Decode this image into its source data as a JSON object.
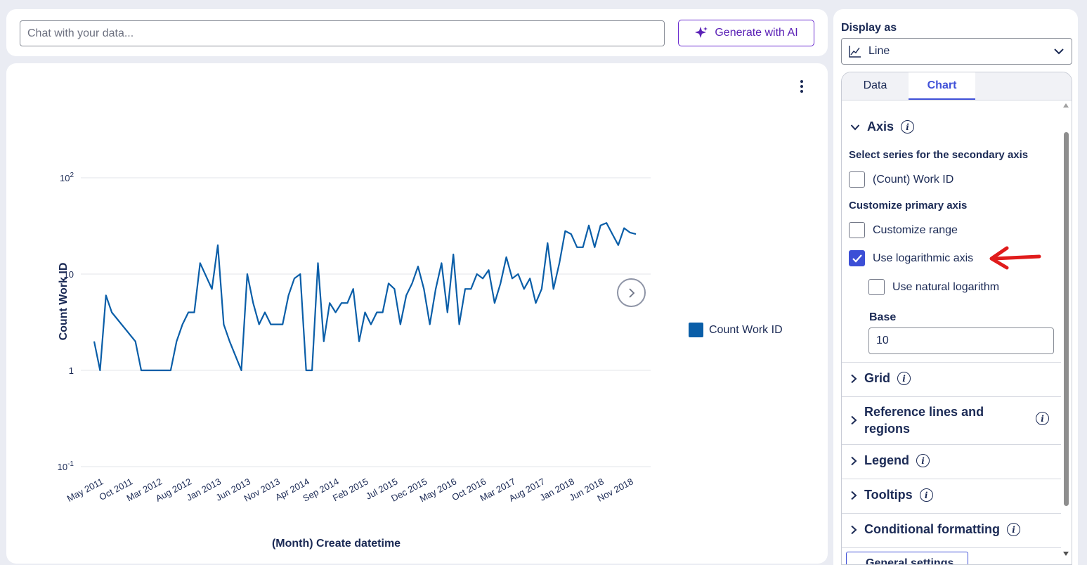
{
  "chat": {
    "placeholder": "Chat with your data..."
  },
  "generate_button": {
    "label": "Generate with AI",
    "icon": "sparkle-icon",
    "color": "#5b21b6"
  },
  "chart_data": {
    "type": "line",
    "xlabel": "(Month) Create datetime",
    "ylabel": "Count Work ID",
    "yscale": "log",
    "ylim": [
      0.1,
      100
    ],
    "ytick_labels": [
      {
        "value": 100,
        "base": "10",
        "exp": "2"
      },
      {
        "value": 10,
        "base": "10",
        "exp": ""
      },
      {
        "value": 1,
        "base": "1",
        "exp": ""
      },
      {
        "value": 0.1,
        "base": "10",
        "exp": "-1"
      }
    ],
    "xtick_labels": [
      "May 2011",
      "Oct 2011",
      "Mar 2012",
      "Aug 2012",
      "Jan 2013",
      "Jun 2013",
      "Nov 2013",
      "Apr 2014",
      "Sep 2014",
      "Feb 2015",
      "Jul 2015",
      "Dec 2015",
      "May 2016",
      "Oct 2016",
      "Mar 2017",
      "Aug 2017",
      "Jan 2018",
      "Jun 2018",
      "Nov 2018"
    ],
    "grid": "horizontal",
    "legend_position": "right",
    "series": [
      {
        "name": "Count Work ID",
        "color": "#0a5ea8",
        "x": [
          "2011-05",
          "2011-06",
          "2011-07",
          "2011-08",
          "2011-12",
          "2012-01",
          "2012-06",
          "2012-07",
          "2012-08",
          "2012-09",
          "2012-10",
          "2012-11",
          "2013-01",
          "2013-02",
          "2013-03",
          "2013-04",
          "2013-06",
          "2013-07",
          "2013-08",
          "2013-09",
          "2013-10",
          "2013-11",
          "2013-12",
          "2014-01",
          "2014-02",
          "2014-03",
          "2014-04",
          "2014-05",
          "2014-06",
          "2014-07",
          "2014-08",
          "2014-09",
          "2014-10",
          "2014-11",
          "2014-12",
          "2015-01",
          "2015-02",
          "2015-03",
          "2015-04",
          "2015-05",
          "2015-06",
          "2015-07",
          "2015-08",
          "2015-09",
          "2015-10",
          "2015-11",
          "2015-12",
          "2016-01",
          "2016-02",
          "2016-03",
          "2016-04",
          "2016-05",
          "2016-06",
          "2016-07",
          "2016-08",
          "2016-09",
          "2016-10",
          "2016-11",
          "2016-12",
          "2017-01",
          "2017-02",
          "2017-03",
          "2017-04",
          "2017-05",
          "2017-06",
          "2017-07",
          "2017-08",
          "2017-09",
          "2017-10",
          "2017-11",
          "2017-12",
          "2018-01",
          "2018-02",
          "2018-03",
          "2018-04",
          "2018-05",
          "2018-06",
          "2018-07",
          "2018-08",
          "2018-09",
          "2018-10",
          "2018-11",
          "2018-12",
          "2019-01"
        ],
        "values": [
          2,
          1,
          6,
          4,
          2,
          1,
          1,
          2,
          3,
          4,
          4,
          13,
          7,
          20,
          3,
          2,
          1,
          10,
          5,
          3,
          4,
          3,
          3,
          3,
          6,
          9,
          10,
          1,
          1,
          13,
          2,
          5,
          4,
          5,
          5,
          7,
          2,
          4,
          3,
          4,
          4,
          8,
          7,
          3,
          6,
          8,
          12,
          7,
          3,
          7,
          13,
          4,
          16,
          3,
          7,
          7,
          10,
          9,
          11,
          5,
          8,
          15,
          9,
          10,
          7,
          9,
          5,
          7,
          21,
          7,
          13,
          28,
          26,
          19,
          19,
          32,
          19,
          32,
          34,
          26,
          20,
          30,
          27,
          26
        ]
      }
    ]
  },
  "legend": {
    "entries": [
      "Count Work ID"
    ]
  },
  "panel": {
    "display_as_label": "Display as",
    "display_value": "Line",
    "tabs": [
      {
        "label": "Data"
      },
      {
        "label": "Chart",
        "active": true
      }
    ],
    "axis": {
      "title": "Axis",
      "secondary_label": "Select series for the secondary axis",
      "secondary_option": "(Count) Work ID",
      "secondary_checked": false,
      "primary_label": "Customize primary axis",
      "customize_range": "Customize range",
      "customize_range_checked": false,
      "log_axis": "Use logarithmic axis",
      "log_axis_checked": true,
      "natural_log": "Use natural logarithm",
      "natural_log_checked": false,
      "base_label": "Base",
      "base_value": "10"
    },
    "sections": [
      "Grid",
      "Reference lines and regions",
      "Legend",
      "Tooltips",
      "Conditional formatting"
    ],
    "cut_off_button": "General settings"
  },
  "annotation_arrow_color": "#e01b1b"
}
